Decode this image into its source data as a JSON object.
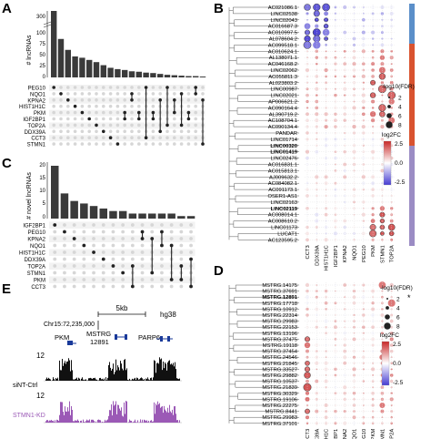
{
  "panels": {
    "A": "A",
    "B": "B",
    "C": "C",
    "D": "D",
    "E": "E"
  },
  "A": {
    "ylabel": "# lncRNAs",
    "ticks": [
      "0",
      "25",
      "50",
      "75",
      "100",
      "300"
    ],
    "genes": [
      "PEG10",
      "NQO1",
      "KPNA2",
      "HIST1H1C",
      "PKM",
      "IGF2BP1",
      "TOP2A",
      "DDX39A",
      "CCT3",
      "STMN1"
    ],
    "bars": [
      300,
      88,
      63,
      48,
      45,
      40,
      35,
      28,
      22,
      19,
      17,
      14,
      13,
      11,
      10,
      8,
      6,
      5,
      4,
      3,
      3,
      2
    ]
  },
  "C": {
    "ylabel": "# novel lncRNAs",
    "ticks": [
      "0",
      "5",
      "10",
      "15",
      "20"
    ],
    "genes": [
      "IGF2BP1",
      "PEG10",
      "KPNA2",
      "NQO1",
      "HIST1H1C",
      "DDX39A",
      "TOP2A",
      "STMN1",
      "PKM",
      "CCT3"
    ],
    "bars": [
      21,
      10,
      7,
      6,
      5,
      4,
      3,
      3,
      2,
      2,
      2,
      2,
      2,
      1,
      1
    ]
  },
  "B": {
    "rows": [
      "AC021086.1",
      "LINC02538",
      "LINC02043",
      "AC016687.3",
      "AC010997.5",
      "AL078604.2",
      "AC099518.1",
      "AC010624.1",
      "AL138071.1",
      "AC046168.2",
      "LINC02062",
      "AC055811.3",
      "AL023803.2",
      "LINC00987",
      "LINC02021",
      "AP006621.2",
      "AC090164.4",
      "AL390719.2",
      "AC108704.1",
      "AC090134.4",
      "PANDAR",
      "LINC01714",
      "LINC00320",
      "LINC01419",
      "LINC02476",
      "AC016831.1",
      "AC015813.1",
      "AJ009632.2",
      "AC084082.1",
      "AC091173.1",
      "OSER1-AS1",
      "LINC02163",
      "LINC02119",
      "AC008014.1",
      "AC008610.2",
      "LINC01173",
      "LUCAT1",
      "AC123595.2"
    ],
    "bold": [
      "LINC00320",
      "LINC01419",
      "LINC02119"
    ],
    "cols": [
      "CCT3",
      "DDX39A",
      "HIST1H1C",
      "IGF2BP1",
      "KPNA2",
      "NQO1",
      "PEG10",
      "PKM",
      "STMN1",
      "TOP2A"
    ],
    "size_legend": {
      "title": "-log10(FDR)",
      "values": [
        "2",
        "4",
        "6",
        "8"
      ]
    },
    "color_legend": {
      "title": "log2FC",
      "values": [
        "2.5",
        "0.0",
        "-2.5"
      ]
    }
  },
  "D": {
    "rows": [
      "MSTRG.14175",
      "MSTRG.37691",
      "MSTRG.12891",
      "MSTRG.17718",
      "MSTRG.10912",
      "MSTRG.22314",
      "MSTRG.29983",
      "MSTRG.22153",
      "MSTRG.13196",
      "MSTRG.37475",
      "MSTRG.19118",
      "MSTRG.37454",
      "MSTRG.24546",
      "MSTRG.21845",
      "MSTRG.33527",
      "MSTRG.29882",
      "MSTRG.10537",
      "MSTRG.21839",
      "MSTRG.30329",
      "MSTRG.19106",
      "MSTRG.22275",
      "MSTRG.8441",
      "MSTRG.29983",
      "MSTRG.37101"
    ],
    "bold": [
      "MSTRG.12891"
    ],
    "star": "*",
    "cols": [
      "CCT3",
      "DDX39A",
      "HIST1H1C",
      "IGF2BP1",
      "KPNA2",
      "NQO1",
      "PEG10",
      "PKM",
      "STMN1",
      "TOP2A"
    ],
    "size_legend": {
      "title": "-log10(FDR)",
      "values": [
        "2",
        "4",
        "6",
        "8"
      ]
    },
    "color_legend": {
      "title": "log2FC",
      "values": [
        "2.5",
        "0.0",
        "-2.5"
      ]
    }
  },
  "E": {
    "scale": "5kb",
    "genome": "hg38",
    "coord": "Chr15:72,235,000",
    "genes": [
      "PKM",
      "MSTRG\n12891",
      "PARP6"
    ],
    "gene1": "PKM",
    "gene2a": "MSTRG",
    "gene2b": "12891",
    "gene3": "PARP6",
    "tracks": [
      {
        "label": "siNT-Ctrl",
        "max": "12",
        "min": "0",
        "color": "#111111"
      },
      {
        "label": "STMN1-KD",
        "max": "12",
        "min": "0",
        "color": "#9b59b6"
      }
    ]
  }
}
